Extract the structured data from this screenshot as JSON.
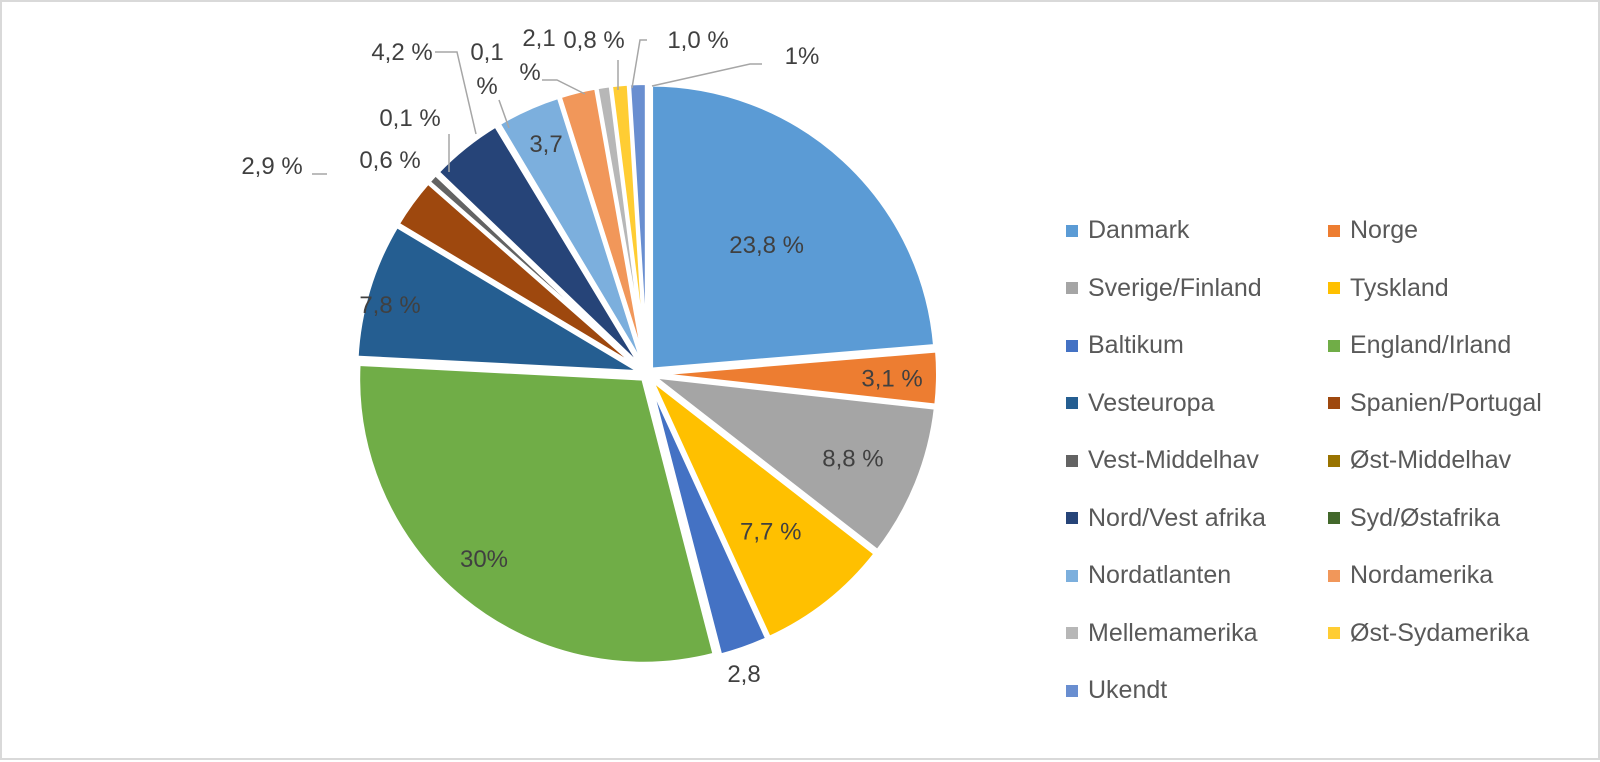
{
  "chart_data": {
    "type": "pie",
    "title": "",
    "start_angle": "12 o'clock, clockwise",
    "legend_position": "right",
    "slices": [
      {
        "name": "Danmark",
        "value": 23.8,
        "label": "23,8 %",
        "color": "#5B9BD5"
      },
      {
        "name": "Norge",
        "value": 3.1,
        "label": "3,1 %",
        "color": "#ED7D31"
      },
      {
        "name": "Sverige/Finland",
        "value": 8.8,
        "label": "8,8 %",
        "color": "#A5A5A5"
      },
      {
        "name": "Tyskland",
        "value": 7.7,
        "label": "7,7 %",
        "color": "#FFC000"
      },
      {
        "name": "Baltikum",
        "value": 2.8,
        "label": "2,8",
        "color": "#4472C4"
      },
      {
        "name": "England/Irland",
        "value": 30.0,
        "label": "30%",
        "color": "#70AD47"
      },
      {
        "name": "Vesteuropa",
        "value": 7.8,
        "label": "7,8 %",
        "color": "#255E91"
      },
      {
        "name": "Spanien/Portugal",
        "value": 2.9,
        "label": "2,9 %",
        "color": "#9E480E"
      },
      {
        "name": "Vest-Middelhav",
        "value": 0.6,
        "label": "0,6 %",
        "color": "#636363"
      },
      {
        "name": "Øst-Middelhav",
        "value": 0.1,
        "label": "0,1 %",
        "color": "#997300"
      },
      {
        "name": "Nord/Vest afrika",
        "value": 4.2,
        "label": "4,2 %",
        "color": "#264478"
      },
      {
        "name": "Syd/Østafrika",
        "value": 0.1,
        "label": "0,1 %",
        "color": "#43682B"
      },
      {
        "name": "Nordatlanten",
        "value": 3.7,
        "label": "3,7",
        "color": "#7CAFDD"
      },
      {
        "name": "Nordamerika",
        "value": 2.1,
        "label": "2,1 %",
        "color": "#F1975A"
      },
      {
        "name": "Mellemamerika",
        "value": 0.8,
        "label": "0,8 %",
        "color": "#B7B7B7"
      },
      {
        "name": "Øst-Sydamerika",
        "value": 1.0,
        "label": "1,0 %",
        "color": "#FFCD33"
      },
      {
        "name": "Ukendt",
        "value": 1.0,
        "label": "1%",
        "color": "#698ED0"
      }
    ]
  }
}
